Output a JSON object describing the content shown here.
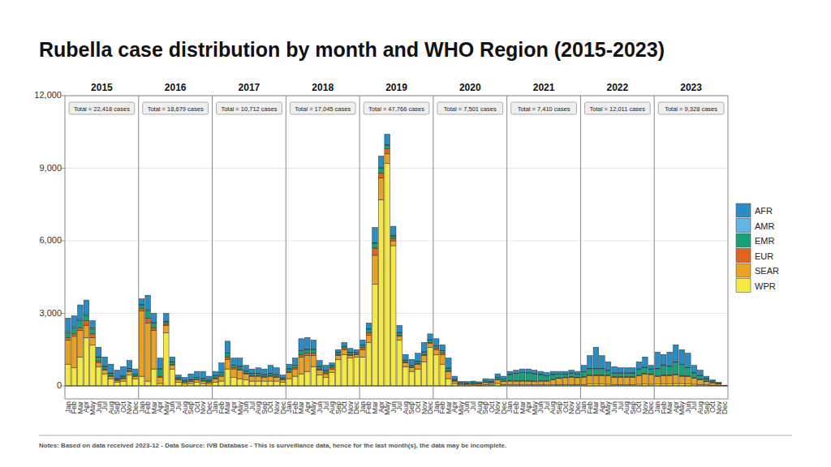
{
  "chart_data": {
    "type": "bar",
    "title": "Rubella case distribution by month and WHO Region (2015-2023)",
    "stacked": true,
    "grid": true,
    "legend": "right",
    "categories": [
      "Jan",
      "Feb",
      "Mar",
      "Apr",
      "May",
      "Jun",
      "Jul",
      "Aug",
      "Sep",
      "Oct",
      "Nov",
      "Dec",
      "Jan",
      "Feb",
      "Mar",
      "Apr",
      "May",
      "Jun",
      "Jul",
      "Aug",
      "Sep",
      "Oct",
      "Nov",
      "Dec",
      "Jan",
      "Feb",
      "Mar",
      "Apr",
      "May",
      "Jun",
      "Jul",
      "Aug",
      "Sep",
      "Oct",
      "Nov",
      "Dec",
      "Jan",
      "Feb",
      "Mar",
      "Apr",
      "May",
      "Jun",
      "Jul",
      "Aug",
      "Sep",
      "Oct",
      "Nov",
      "Dec",
      "Jan",
      "Feb",
      "Mar",
      "Apr",
      "May",
      "Jun",
      "Jul",
      "Aug",
      "Sep",
      "Oct",
      "Nov",
      "Dec",
      "Jan",
      "Feb",
      "Mar",
      "Apr",
      "May",
      "Jun",
      "Jul",
      "Aug",
      "Sep",
      "Oct",
      "Nov",
      "Dec",
      "Jan",
      "Feb",
      "Mar",
      "Apr",
      "May",
      "Jun",
      "Jul",
      "Aug",
      "Sep",
      "Oct",
      "Nov",
      "Dec",
      "Jan",
      "Feb",
      "Mar",
      "Apr",
      "May",
      "Jun",
      "Jul",
      "Aug",
      "Sep",
      "Oct",
      "Nov",
      "Dec",
      "Jan",
      "Feb",
      "Mar",
      "Apr",
      "May",
      "Jun",
      "Jul",
      "Aug",
      "Sep",
      "Oct",
      "Nov",
      "Dec"
    ],
    "panels": [
      {
        "label": "2015",
        "total": "Total = 22,418 cases"
      },
      {
        "label": "2016",
        "total": "Total = 18,679 cases"
      },
      {
        "label": "2017",
        "total": "Total = 10,712 cases"
      },
      {
        "label": "2018",
        "total": "Total = 17,045 cases"
      },
      {
        "label": "2019",
        "total": "Total = 47,766 cases"
      },
      {
        "label": "2020",
        "total": "Total = 7,501 cases"
      },
      {
        "label": "2021",
        "total": "Total = 7,410 cases"
      },
      {
        "label": "2022",
        "total": "Total = 12,011 cases"
      },
      {
        "label": "2023",
        "total": "Total = 9,328 cases"
      }
    ],
    "series": [
      {
        "name": "AFR",
        "color": "#2a8cc4",
        "values": [
          550,
          450,
          600,
          600,
          300,
          400,
          380,
          370,
          340,
          390,
          330,
          210,
          230,
          600,
          380,
          430,
          330,
          200,
          110,
          120,
          230,
          240,
          290,
          160,
          180,
          390,
          480,
          290,
          340,
          230,
          180,
          230,
          230,
          330,
          280,
          120,
          190,
          290,
          480,
          480,
          380,
          240,
          210,
          110,
          110,
          160,
          160,
          100,
          210,
          240,
          630,
          480,
          430,
          390,
          290,
          230,
          240,
          330,
          390,
          240,
          290,
          240,
          410,
          130,
          40,
          50,
          60,
          50,
          90,
          90,
          140,
          110,
          120,
          120,
          140,
          150,
          140,
          120,
          120,
          120,
          110,
          100,
          110,
          100,
          260,
          530,
          880,
          530,
          350,
          260,
          210,
          210,
          210,
          300,
          430,
          150,
          680,
          430,
          580,
          710,
          610,
          580,
          300,
          210,
          90,
          50,
          30,
          5
        ]
      },
      {
        "name": "AMR",
        "color": "#62b4e6",
        "values": [
          50,
          50,
          50,
          50,
          50,
          20,
          20,
          20,
          10,
          10,
          10,
          10,
          20,
          50,
          20,
          20,
          20,
          20,
          10,
          10,
          10,
          10,
          10,
          10,
          10,
          10,
          20,
          10,
          10,
          10,
          10,
          10,
          10,
          10,
          10,
          10,
          10,
          10,
          20,
          20,
          20,
          10,
          10,
          10,
          10,
          10,
          10,
          10,
          10,
          10,
          20,
          20,
          20,
          10,
          10,
          10,
          10,
          10,
          10,
          10,
          10,
          10,
          10,
          10,
          0,
          0,
          0,
          0,
          0,
          0,
          10,
          10,
          10,
          10,
          10,
          10,
          10,
          10,
          10,
          10,
          10,
          10,
          10,
          10,
          10,
          10,
          10,
          10,
          10,
          10,
          10,
          10,
          10,
          10,
          10,
          10,
          10,
          10,
          10,
          10,
          10,
          10,
          10,
          10,
          10,
          0,
          0,
          0
        ]
      },
      {
        "name": "EMR",
        "color": "#17a17a",
        "values": [
          200,
          250,
          300,
          200,
          200,
          150,
          100,
          80,
          50,
          70,
          80,
          60,
          150,
          300,
          200,
          300,
          100,
          100,
          60,
          50,
          60,
          80,
          80,
          60,
          80,
          100,
          150,
          100,
          100,
          80,
          80,
          80,
          80,
          80,
          80,
          50,
          100,
          100,
          150,
          150,
          150,
          100,
          80,
          80,
          80,
          80,
          80,
          60,
          100,
          150,
          200,
          200,
          150,
          100,
          100,
          80,
          70,
          80,
          100,
          100,
          100,
          100,
          100,
          50,
          30,
          30,
          40,
          30,
          60,
          50,
          80,
          80,
          250,
          300,
          330,
          320,
          300,
          250,
          200,
          200,
          150,
          130,
          150,
          130,
          200,
          250,
          250,
          250,
          200,
          150,
          150,
          150,
          150,
          250,
          250,
          200,
          300,
          400,
          350,
          500,
          450,
          350,
          200,
          150,
          100,
          60,
          30,
          5
        ]
      },
      {
        "name": "EUR",
        "color": "#e0641e",
        "values": [
          100,
          100,
          100,
          200,
          150,
          80,
          50,
          30,
          20,
          30,
          30,
          20,
          100,
          200,
          100,
          50,
          50,
          30,
          20,
          10,
          20,
          20,
          20,
          10,
          30,
          50,
          100,
          50,
          50,
          30,
          30,
          30,
          30,
          30,
          30,
          20,
          50,
          50,
          100,
          100,
          100,
          50,
          50,
          50,
          50,
          50,
          50,
          30,
          80,
          100,
          300,
          200,
          200,
          100,
          50,
          30,
          30,
          30,
          50,
          50,
          50,
          50,
          30,
          10,
          10,
          10,
          10,
          10,
          10,
          10,
          20,
          20,
          20,
          20,
          20,
          20,
          20,
          20,
          20,
          20,
          20,
          20,
          20,
          20,
          20,
          30,
          30,
          30,
          20,
          20,
          20,
          20,
          20,
          20,
          30,
          20,
          30,
          30,
          30,
          30,
          30,
          30,
          20,
          20,
          10,
          10,
          10,
          5
        ]
      },
      {
        "name": "SEAR",
        "color": "#e9a222",
        "values": [
          1000,
          1300,
          1100,
          500,
          300,
          150,
          150,
          100,
          80,
          100,
          150,
          100,
          2700,
          2400,
          1600,
          250,
          300,
          150,
          100,
          80,
          80,
          100,
          100,
          80,
          150,
          200,
          400,
          350,
          350,
          250,
          200,
          200,
          150,
          200,
          150,
          100,
          250,
          300,
          700,
          650,
          450,
          200,
          150,
          150,
          150,
          200,
          100,
          100,
          300,
          300,
          1200,
          900,
          400,
          200,
          150,
          150,
          150,
          200,
          250,
          150,
          200,
          400,
          300,
          100,
          50,
          50,
          50,
          50,
          80,
          80,
          150,
          120,
          150,
          150,
          150,
          150,
          130,
          150,
          150,
          200,
          250,
          280,
          300,
          280,
          300,
          350,
          350,
          350,
          350,
          300,
          300,
          300,
          300,
          350,
          400,
          400,
          300,
          350,
          350,
          350,
          300,
          300,
          250,
          200,
          150,
          100,
          60,
          10
        ]
      },
      {
        "name": "WPR",
        "color": "#f5e842",
        "values": [
          900,
          750,
          1200,
          2000,
          1700,
          800,
          500,
          300,
          150,
          200,
          450,
          300,
          400,
          200,
          700,
          100,
          2200,
          700,
          150,
          80,
          100,
          150,
          100,
          80,
          150,
          200,
          700,
          350,
          300,
          250,
          200,
          200,
          200,
          200,
          200,
          150,
          300,
          400,
          500,
          600,
          800,
          450,
          350,
          550,
          1100,
          1300,
          1150,
          1200,
          1200,
          1800,
          4200,
          7700,
          9200,
          5800,
          1900,
          800,
          600,
          700,
          1000,
          1600,
          1300,
          900,
          300,
          100,
          50,
          40,
          40,
          30,
          60,
          50,
          100,
          60,
          50,
          50,
          50,
          50,
          50,
          50,
          50,
          50,
          60,
          60,
          60,
          60,
          60,
          80,
          80,
          80,
          70,
          60,
          60,
          60,
          60,
          70,
          80,
          70,
          80,
          80,
          80,
          100,
          100,
          80,
          70,
          60,
          40,
          30,
          20,
          5
        ]
      }
    ],
    "ylim": [
      0,
      12000
    ],
    "yticks": [
      0,
      {
        "value": 3000,
        "label": "3,000"
      },
      {
        "value": 6000,
        "label": "6,000"
      },
      {
        "value": 9000,
        "label": "9,000"
      },
      {
        "value": 12000,
        "label": "12,000"
      }
    ],
    "note": "Notes: Based on data received 2023-12 - Data Source: IVB Database - This is surveillance data, hence for the last month(s), the data may be incomplete."
  }
}
